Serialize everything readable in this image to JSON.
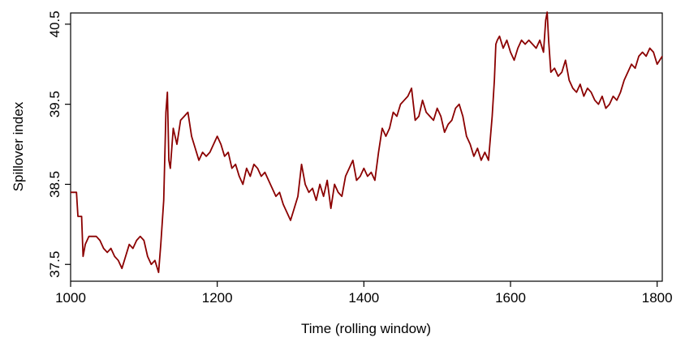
{
  "chart_data": {
    "type": "line",
    "xlabel": "Time (rolling window)",
    "ylabel": "Spillover index",
    "color": "#8b0000",
    "xlim": [
      1000,
      1807
    ],
    "ylim": [
      37.29,
      40.64
    ],
    "xticks": [
      1000,
      1200,
      1400,
      1600,
      1800
    ],
    "yticks": [
      37.5,
      38.5,
      39.5,
      40.5
    ],
    "x": [
      1000,
      1008,
      1010,
      1015,
      1017,
      1020,
      1025,
      1035,
      1040,
      1045,
      1050,
      1055,
      1060,
      1065,
      1070,
      1075,
      1080,
      1085,
      1090,
      1095,
      1100,
      1105,
      1110,
      1115,
      1120,
      1123,
      1127,
      1130,
      1132,
      1134,
      1136,
      1140,
      1145,
      1150,
      1155,
      1160,
      1165,
      1170,
      1175,
      1180,
      1185,
      1190,
      1195,
      1200,
      1205,
      1210,
      1215,
      1220,
      1225,
      1230,
      1235,
      1240,
      1245,
      1250,
      1255,
      1260,
      1265,
      1270,
      1275,
      1280,
      1285,
      1290,
      1295,
      1300,
      1305,
      1310,
      1315,
      1320,
      1325,
      1330,
      1335,
      1340,
      1345,
      1350,
      1355,
      1360,
      1365,
      1370,
      1375,
      1380,
      1385,
      1390,
      1395,
      1400,
      1405,
      1410,
      1415,
      1420,
      1425,
      1430,
      1435,
      1440,
      1445,
      1450,
      1455,
      1460,
      1465,
      1470,
      1475,
      1480,
      1485,
      1490,
      1495,
      1500,
      1505,
      1510,
      1515,
      1520,
      1525,
      1530,
      1535,
      1540,
      1545,
      1550,
      1555,
      1560,
      1565,
      1570,
      1575,
      1578,
      1580,
      1582,
      1585,
      1590,
      1595,
      1600,
      1605,
      1610,
      1615,
      1620,
      1625,
      1630,
      1635,
      1640,
      1645,
      1648,
      1650,
      1652,
      1655,
      1660,
      1665,
      1670,
      1675,
      1680,
      1685,
      1690,
      1695,
      1700,
      1705,
      1710,
      1715,
      1720,
      1725,
      1730,
      1735,
      1740,
      1745,
      1750,
      1755,
      1760,
      1765,
      1770,
      1775,
      1780,
      1785,
      1790,
      1795,
      1800,
      1807
    ],
    "values": [
      38.4,
      38.4,
      38.1,
      38.1,
      37.6,
      37.75,
      37.85,
      37.85,
      37.8,
      37.7,
      37.65,
      37.7,
      37.6,
      37.55,
      37.45,
      37.6,
      37.75,
      37.7,
      37.8,
      37.85,
      37.8,
      37.6,
      37.5,
      37.55,
      37.4,
      37.75,
      38.3,
      39.4,
      39.65,
      38.8,
      38.7,
      39.2,
      39.0,
      39.3,
      39.35,
      39.4,
      39.1,
      38.95,
      38.8,
      38.9,
      38.85,
      38.9,
      39.0,
      39.1,
      39.0,
      38.85,
      38.9,
      38.7,
      38.75,
      38.6,
      38.5,
      38.7,
      38.6,
      38.75,
      38.7,
      38.6,
      38.65,
      38.55,
      38.45,
      38.35,
      38.4,
      38.25,
      38.15,
      38.05,
      38.2,
      38.35,
      38.75,
      38.5,
      38.4,
      38.45,
      38.3,
      38.5,
      38.35,
      38.55,
      38.2,
      38.5,
      38.4,
      38.35,
      38.6,
      38.7,
      38.8,
      38.55,
      38.6,
      38.7,
      38.6,
      38.65,
      38.55,
      38.9,
      39.2,
      39.1,
      39.2,
      39.4,
      39.35,
      39.5,
      39.55,
      39.6,
      39.7,
      39.3,
      39.35,
      39.55,
      39.4,
      39.35,
      39.3,
      39.45,
      39.35,
      39.15,
      39.25,
      39.3,
      39.45,
      39.5,
      39.35,
      39.1,
      39.0,
      38.85,
      38.95,
      38.8,
      38.9,
      38.8,
      39.35,
      39.8,
      40.25,
      40.3,
      40.35,
      40.2,
      40.3,
      40.15,
      40.05,
      40.2,
      40.3,
      40.25,
      40.3,
      40.25,
      40.2,
      40.3,
      40.15,
      40.55,
      40.65,
      40.3,
      39.9,
      39.95,
      39.85,
      39.9,
      40.05,
      39.8,
      39.7,
      39.65,
      39.75,
      39.6,
      39.7,
      39.65,
      39.55,
      39.5,
      39.6,
      39.45,
      39.5,
      39.6,
      39.55,
      39.65,
      39.8,
      39.9,
      40.0,
      39.95,
      40.1,
      40.15,
      40.1,
      40.2,
      40.15,
      40.0,
      40.1
    ]
  }
}
